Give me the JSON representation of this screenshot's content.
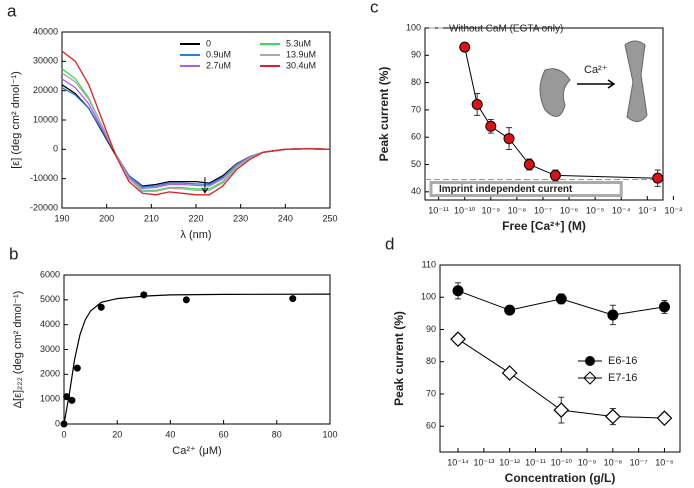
{
  "chart_data": [
    {
      "type": "line",
      "panel": "a",
      "xlabel": "λ (nm)",
      "ylabel": "[ε] (deg cm² dmol⁻¹)",
      "xlim": [
        190,
        250
      ],
      "ylim": [
        -20000,
        40000
      ],
      "xticks": [
        190,
        200,
        210,
        220,
        230,
        240,
        250
      ],
      "yticks": [
        -20000,
        -10000,
        0,
        10000,
        20000,
        30000,
        40000
      ],
      "x": [
        190,
        193,
        196,
        199,
        202,
        205,
        208,
        211,
        214,
        217,
        220,
        223,
        226,
        229,
        232,
        235,
        240,
        245,
        250
      ],
      "series": [
        {
          "name": "0",
          "color": "#000000",
          "values": [
            22000,
            19000,
            14000,
            6000,
            -2000,
            -9000,
            -12500,
            -12000,
            -11000,
            -11000,
            -11000,
            -11500,
            -9000,
            -5000,
            -2500,
            -1000,
            0,
            200,
            0
          ]
        },
        {
          "name": "0.9uM",
          "color": "#2a7de1",
          "values": [
            21000,
            18500,
            14000,
            6500,
            -1500,
            -9000,
            -12800,
            -12500,
            -11500,
            -11500,
            -11800,
            -12000,
            -9500,
            -5200,
            -2500,
            -1000,
            0,
            200,
            0
          ]
        },
        {
          "name": "2.7uM",
          "color": "#b05ee8",
          "values": [
            24000,
            21000,
            15500,
            7000,
            -1500,
            -9500,
            -13300,
            -13000,
            -12000,
            -12000,
            -12300,
            -12500,
            -10000,
            -5500,
            -2700,
            -1000,
            0,
            200,
            0
          ]
        },
        {
          "name": "5.3uM",
          "color": "#33dd55",
          "values": [
            27500,
            24000,
            17500,
            8000,
            -1500,
            -10000,
            -14000,
            -14000,
            -13000,
            -13000,
            -13500,
            -13500,
            -11000,
            -6000,
            -3000,
            -1000,
            0,
            200,
            0
          ]
        },
        {
          "name": "13.9uM",
          "color": "#aaaaaa",
          "values": [
            26000,
            23000,
            17000,
            8000,
            -1500,
            -10000,
            -14300,
            -14300,
            -13300,
            -13500,
            -14000,
            -14000,
            -11500,
            -6300,
            -3000,
            -1000,
            0,
            200,
            0
          ]
        },
        {
          "name": "30.4uM",
          "color": "#e02020",
          "values": [
            33500,
            30000,
            22000,
            10000,
            -2000,
            -11000,
            -15000,
            -15500,
            -14500,
            -15000,
            -15500,
            -15500,
            -12500,
            -7000,
            -3500,
            -1000,
            0,
            200,
            0
          ]
        }
      ],
      "arrow": [
        222,
        -9500,
        -14800
      ]
    },
    {
      "type": "scatter",
      "panel": "b",
      "xlabel": "Ca²⁺ (μM)",
      "ylabel": "Δ[ε]₂₂₂ (deg cm² dmol⁻¹)",
      "xlim": [
        0,
        100
      ],
      "ylim": [
        0,
        6000
      ],
      "xticks": [
        0,
        20,
        40,
        60,
        80,
        100
      ],
      "yticks": [
        0,
        1000,
        2000,
        3000,
        4000,
        5000,
        6000
      ],
      "series": [
        {
          "color": "#000000",
          "marker": "circle",
          "x": [
            0,
            1,
            3,
            5,
            14,
            30,
            46,
            86
          ],
          "values": [
            0,
            1100,
            950,
            2250,
            4700,
            5200,
            5000,
            5050
          ]
        }
      ],
      "fit": {
        "x": [
          0,
          2,
          4,
          6,
          8,
          10,
          14,
          20,
          30,
          40,
          60,
          100
        ],
        "values": [
          0,
          1200,
          2600,
          3600,
          4200,
          4550,
          4900,
          5050,
          5150,
          5200,
          5220,
          5230
        ]
      }
    },
    {
      "type": "scatter",
      "panel": "c",
      "xlabel": "Free [Ca²⁺] (M)",
      "ylabel": "Peak current (%)",
      "xscale": "log",
      "xlim": [
        3e-12,
        0.004
      ],
      "ylim": [
        37,
        100
      ],
      "xticks": [
        {
          "value": 1e-11,
          "label": "10⁻¹¹"
        },
        {
          "value": 1e-10,
          "label": "10⁻¹⁰"
        },
        {
          "value": 1e-09,
          "label": "10⁻⁹"
        },
        {
          "value": 1e-08,
          "label": "10⁻⁸"
        },
        {
          "value": 1e-07,
          "label": "10⁻⁷"
        },
        {
          "value": 1e-06,
          "label": "10⁻⁶"
        },
        {
          "value": 1e-05,
          "label": "10⁻⁵"
        },
        {
          "value": 0.0001,
          "label": "10⁻⁴"
        },
        {
          "value": 0.001,
          "label": "10⁻³"
        },
        {
          "value": 0.01,
          "label": "10⁻²"
        }
      ],
      "yticks": [
        40,
        50,
        60,
        70,
        80,
        90,
        100
      ],
      "series": [
        {
          "color": "#dd1111",
          "marker": "circle",
          "x": [
            1e-10,
            3e-10,
            1e-09,
            5e-09,
            3e-08,
            3e-07,
            0.0025
          ],
          "values": [
            93,
            72,
            64,
            59.5,
            50,
            46,
            45
          ],
          "errors": [
            1,
            4,
            2.5,
            4,
            2,
            2,
            3
          ]
        }
      ],
      "reference_lines": [
        {
          "value": 100,
          "label": "Without CaM (EGTA only)"
        },
        {
          "value": 44.5,
          "label": "Imprint independent current"
        }
      ],
      "inset_label": "Ca²⁺"
    },
    {
      "type": "scatter",
      "panel": "d",
      "xlabel": "Concentration (g/L)",
      "ylabel": "Peak current (%)",
      "xscale": "log",
      "legend": "right",
      "xlim": [
        2e-15,
        4e-06
      ],
      "ylim": [
        52,
        110
      ],
      "xticks": [
        {
          "value": 1e-14,
          "label": "10⁻¹⁴"
        },
        {
          "value": 1e-13,
          "label": "10⁻¹³"
        },
        {
          "value": 1e-12,
          "label": "10⁻¹²"
        },
        {
          "value": 1e-11,
          "label": "10⁻¹¹"
        },
        {
          "value": 1e-10,
          "label": "10⁻¹⁰"
        },
        {
          "value": 1e-09,
          "label": "10⁻⁹"
        },
        {
          "value": 1e-08,
          "label": "10⁻⁸"
        },
        {
          "value": 1e-07,
          "label": "10⁻⁷"
        },
        {
          "value": 1e-06,
          "label": "10⁻⁶"
        }
      ],
      "yticks": [
        60,
        70,
        80,
        90,
        100,
        110
      ],
      "series": [
        {
          "name": "E6-16",
          "color": "#000000",
          "marker": "circle",
          "x": [
            1e-14,
            1e-12,
            1e-10,
            1e-08,
            1e-06
          ],
          "values": [
            102,
            96,
            99.5,
            94.5,
            97
          ],
          "errors": [
            2.5,
            1,
            1.5,
            3,
            2
          ]
        },
        {
          "name": "E7-16",
          "color": "#000000",
          "marker": "diamond",
          "x": [
            1e-14,
            1e-12,
            1e-10,
            1e-08,
            1e-06
          ],
          "values": [
            87,
            76.5,
            65,
            63,
            62.5
          ],
          "errors": [
            1.5,
            1,
            4,
            2.5,
            1.5
          ]
        }
      ]
    }
  ]
}
